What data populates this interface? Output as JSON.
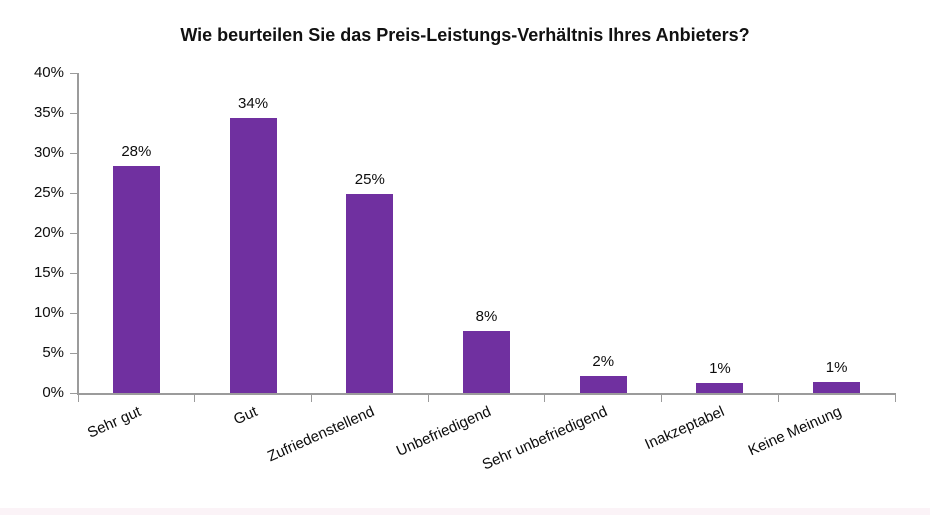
{
  "chart_data": {
    "type": "bar",
    "title": "Wie beurteilen Sie das Preis-Leistungs-Verhältnis Ihres Anbieters?",
    "categories": [
      "Sehr gut",
      "Gut",
      "Zufriedenstellend",
      "Unbefriedigend",
      "Sehr unbefriedigend",
      "Inakzeptabel",
      "Keine Meinung"
    ],
    "values": [
      28.4,
      34.4,
      24.9,
      7.7,
      2.1,
      1.2,
      1.4
    ],
    "data_labels": [
      "28%",
      "34%",
      "25%",
      "8%",
      "2%",
      "1%",
      "1%"
    ],
    "values_as_labeled": [
      28,
      34,
      25,
      8,
      2,
      1,
      1
    ],
    "xlabel": "",
    "ylabel": "",
    "ylim": [
      0,
      40
    ],
    "ytick_step": 5,
    "ytick_labels": [
      "0%",
      "5%",
      "10%",
      "15%",
      "20%",
      "25%",
      "30%",
      "35%",
      "40%"
    ],
    "grid": false,
    "legend": "none",
    "x_label_rotation_deg": -24,
    "colors": {
      "bar": "#7030A0",
      "axis": "#9B9B9B",
      "text": "#0D0D0D",
      "title": "#111111",
      "background": "#FFFFFF",
      "footer_strip": "#FBF3F7"
    }
  }
}
